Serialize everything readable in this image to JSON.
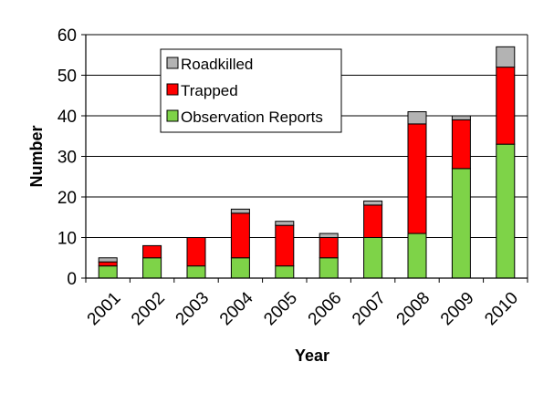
{
  "chart_data": {
    "type": "bar",
    "stacked": true,
    "categories": [
      "2001",
      "2002",
      "2003",
      "2004",
      "2005",
      "2006",
      "2007",
      "2008",
      "2009",
      "2010"
    ],
    "series": [
      {
        "name": "Observation Reports",
        "color": "#7ed348",
        "values": [
          3,
          5,
          3,
          5,
          3,
          5,
          10,
          11,
          27,
          33
        ]
      },
      {
        "name": "Trapped",
        "color": "#ff0000",
        "values": [
          1,
          3,
          7,
          11,
          10,
          5,
          8,
          27,
          12,
          19
        ]
      },
      {
        "name": "Roadkilled",
        "color": "#b3b3b3",
        "values": [
          1,
          0,
          0,
          1,
          1,
          1,
          1,
          3,
          1,
          5
        ]
      }
    ],
    "legend_order": [
      "Roadkilled",
      "Trapped",
      "Observation Reports"
    ],
    "xlabel": "Year",
    "ylabel": "Number",
    "ylim": [
      0,
      60
    ],
    "yticks": [
      0,
      10,
      20,
      30,
      40,
      50,
      60
    ],
    "grid": true,
    "legend_position": "top-left"
  }
}
